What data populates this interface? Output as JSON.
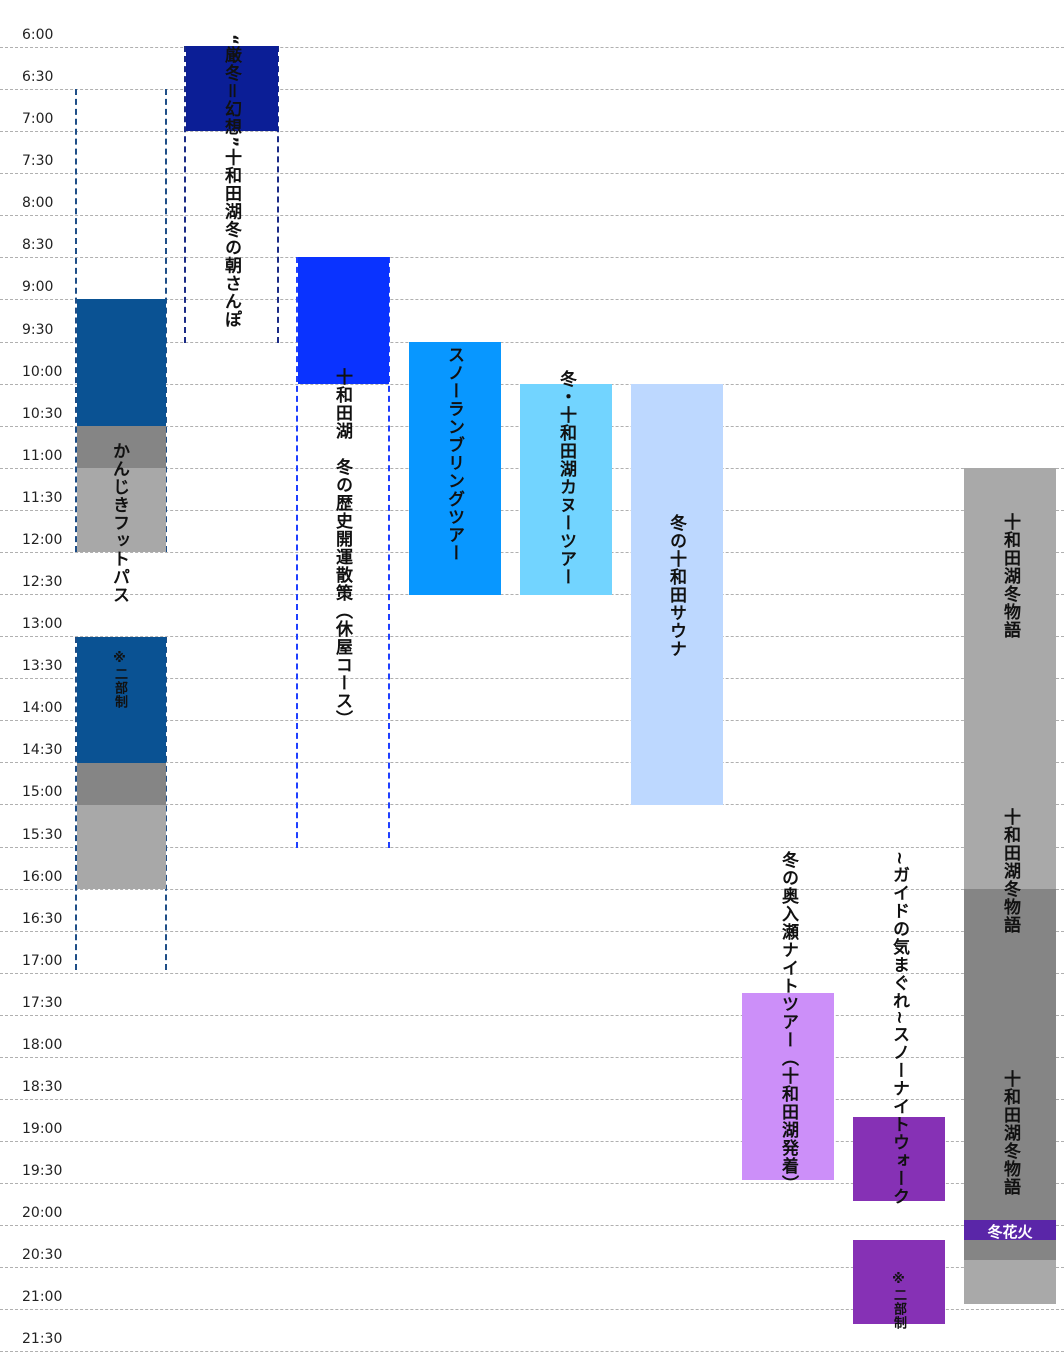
{
  "time_labels": [
    "6:00",
    "6:30",
    "7:00",
    "7:30",
    "8:00",
    "8:30",
    "9:00",
    "9:30",
    "10:00",
    "10:30",
    "11:00",
    "11:30",
    "12:00",
    "12:30",
    "13:00",
    "13:30",
    "14:00",
    "14:30",
    "15:00",
    "15:30",
    "16:00",
    "16:30",
    "17:00",
    "17:30",
    "18:00",
    "18:30",
    "19:00",
    "19:30",
    "20:00",
    "20:30",
    "21:00",
    "21:30"
  ],
  "events": {
    "kanjiki": {
      "title": "かんじきフットパス",
      "note": "※二部制"
    },
    "asasanpo": {
      "title": "“厳冬＝幻想”十和田湖冬の朝さんぽ"
    },
    "rekishi": {
      "title": "十和田湖　冬の歴史開運散策（休屋コース）"
    },
    "snow_rambling": {
      "title": "スノーランブリングツアー"
    },
    "canoe": {
      "title": "冬・十和田湖カヌーツアー"
    },
    "sauna": {
      "title": "冬の十和田サウナ"
    },
    "monogatari": {
      "title": "十和田湖冬物語",
      "fireworks": "冬花火"
    },
    "oirase": {
      "title": "冬の奥入瀬ナイトツアー（十和田湖発着）"
    },
    "night_walk": {
      "title": "~ガイドの気まぐれ~スノーナイトウォーク",
      "note": "※二部制"
    }
  },
  "colors": {
    "kanjiki_active": "#0a5293",
    "kanjiki_dark_gray": "#858585",
    "kanjiki_light_gray": "#a8a8a8",
    "asasanpo": "#0b1e96",
    "rekishi": "#0a33ff",
    "snow_rambling": "#0897ff",
    "canoe": "#72d4ff",
    "sauna": "#bdd8ff",
    "monogatari_light": "#a9a9a9",
    "monogatari_dark": "#858585",
    "fireworks": "#5a26a8",
    "oirase": "#cc8ff9",
    "night_walk": "#8631b5"
  }
}
